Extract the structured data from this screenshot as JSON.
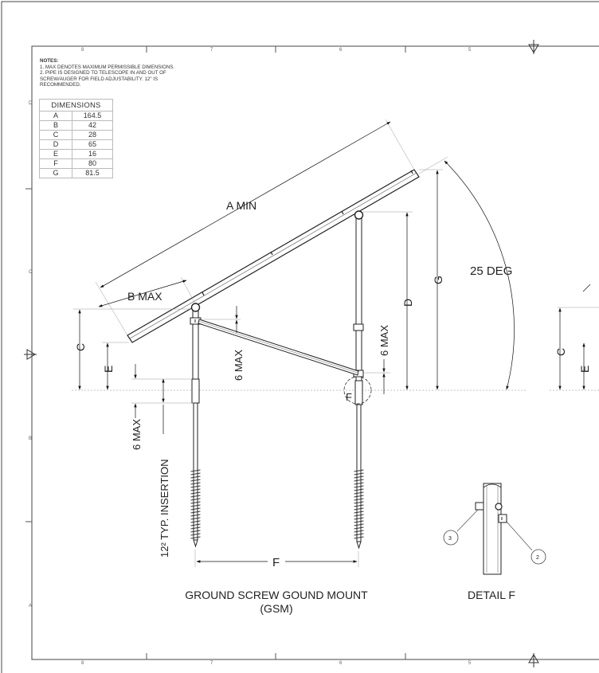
{
  "notes": {
    "title": "NOTES:",
    "lines": [
      "1.    MAX DENOTES MAXIMUM PERMISSIBLE DIMENSIONS.",
      "2.    PIPE IS DESIGNED TO TELESCOPE IN AND OUT OF",
      "        SCREW/AUGER FOR FIELD ADJUSTABILITY.  12\" IS",
      "        RECOMMENDED."
    ]
  },
  "dimensions": {
    "header": "DIMENSIONS",
    "rows": [
      {
        "key": "A",
        "value": "164.5"
      },
      {
        "key": "B",
        "value": "42"
      },
      {
        "key": "C",
        "value": "28"
      },
      {
        "key": "D",
        "value": "65"
      },
      {
        "key": "E",
        "value": "16"
      },
      {
        "key": "F",
        "value": "80"
      },
      {
        "key": "G",
        "value": "81.5"
      }
    ]
  },
  "zones": {
    "columns": [
      "8",
      "7",
      "6",
      "5"
    ],
    "rows": [
      "D",
      "C",
      "B",
      "A"
    ]
  },
  "labels": {
    "a_min": "A MIN",
    "b_max": "B MAX",
    "angle": "25 DEG",
    "c": "C",
    "e": "E",
    "d": "D",
    "g": "G",
    "f": "F",
    "detail_callout": "F",
    "six_max_brace": "6 MAX",
    "six_max_rear": "6 MAX",
    "six_max_front": "6 MAX",
    "insertion": "12² TYP. INSERTION",
    "c_right": "C",
    "e_right": "E",
    "balloon_2": "2",
    "balloon_3": "3"
  },
  "title": {
    "line1": "GROUND SCREW GOUND MOUNT",
    "line2": "(GSM)",
    "detail": "DETAIL  F"
  }
}
